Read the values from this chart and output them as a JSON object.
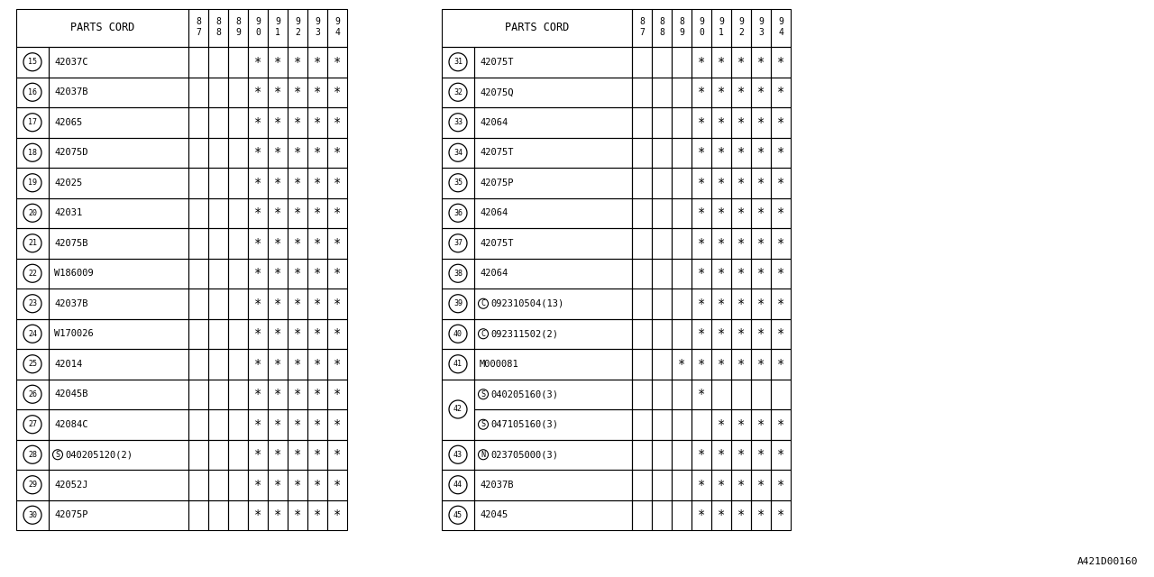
{
  "bg_color": "#ffffff",
  "col_headers_top": [
    "8",
    "8",
    "8",
    "9",
    "9",
    "9",
    "9",
    "9"
  ],
  "col_headers_bot": [
    "7",
    "8",
    "9",
    "0",
    "1",
    "2",
    "3",
    "4"
  ],
  "left_table": {
    "header": "PARTS CORD",
    "rows": [
      {
        "num": "15",
        "code": "42037C",
        "marks": [
          0,
          0,
          0,
          1,
          1,
          1,
          1,
          1
        ],
        "prefix": ""
      },
      {
        "num": "16",
        "code": "42037B",
        "marks": [
          0,
          0,
          0,
          1,
          1,
          1,
          1,
          1
        ],
        "prefix": ""
      },
      {
        "num": "17",
        "code": "42065",
        "marks": [
          0,
          0,
          0,
          1,
          1,
          1,
          1,
          1
        ],
        "prefix": ""
      },
      {
        "num": "18",
        "code": "42075D",
        "marks": [
          0,
          0,
          0,
          1,
          1,
          1,
          1,
          1
        ],
        "prefix": ""
      },
      {
        "num": "19",
        "code": "42025",
        "marks": [
          0,
          0,
          0,
          1,
          1,
          1,
          1,
          1
        ],
        "prefix": ""
      },
      {
        "num": "20",
        "code": "42031",
        "marks": [
          0,
          0,
          0,
          1,
          1,
          1,
          1,
          1
        ],
        "prefix": ""
      },
      {
        "num": "21",
        "code": "42075B",
        "marks": [
          0,
          0,
          0,
          1,
          1,
          1,
          1,
          1
        ],
        "prefix": ""
      },
      {
        "num": "22",
        "code": "W186009",
        "marks": [
          0,
          0,
          0,
          1,
          1,
          1,
          1,
          1
        ],
        "prefix": ""
      },
      {
        "num": "23",
        "code": "42037B",
        "marks": [
          0,
          0,
          0,
          1,
          1,
          1,
          1,
          1
        ],
        "prefix": ""
      },
      {
        "num": "24",
        "code": "W170026",
        "marks": [
          0,
          0,
          0,
          1,
          1,
          1,
          1,
          1
        ],
        "prefix": ""
      },
      {
        "num": "25",
        "code": "42014",
        "marks": [
          0,
          0,
          0,
          1,
          1,
          1,
          1,
          1
        ],
        "prefix": ""
      },
      {
        "num": "26",
        "code": "42045B",
        "marks": [
          0,
          0,
          0,
          1,
          1,
          1,
          1,
          1
        ],
        "prefix": ""
      },
      {
        "num": "27",
        "code": "42084C",
        "marks": [
          0,
          0,
          0,
          1,
          1,
          1,
          1,
          1
        ],
        "prefix": ""
      },
      {
        "num": "28",
        "code": "040205120(2)",
        "marks": [
          0,
          0,
          0,
          1,
          1,
          1,
          1,
          1
        ],
        "prefix": "S"
      },
      {
        "num": "29",
        "code": "42052J",
        "marks": [
          0,
          0,
          0,
          1,
          1,
          1,
          1,
          1
        ],
        "prefix": ""
      },
      {
        "num": "30",
        "code": "42075P",
        "marks": [
          0,
          0,
          0,
          1,
          1,
          1,
          1,
          1
        ],
        "prefix": ""
      }
    ]
  },
  "right_table": {
    "header": "PARTS CORD",
    "rows": [
      {
        "num": "31",
        "code": "42075T",
        "marks": [
          0,
          0,
          0,
          1,
          1,
          1,
          1,
          1
        ],
        "prefix": ""
      },
      {
        "num": "32",
        "code": "42075Q",
        "marks": [
          0,
          0,
          0,
          1,
          1,
          1,
          1,
          1
        ],
        "prefix": ""
      },
      {
        "num": "33",
        "code": "42064",
        "marks": [
          0,
          0,
          0,
          1,
          1,
          1,
          1,
          1
        ],
        "prefix": ""
      },
      {
        "num": "34",
        "code": "42075T",
        "marks": [
          0,
          0,
          0,
          1,
          1,
          1,
          1,
          1
        ],
        "prefix": ""
      },
      {
        "num": "35",
        "code": "42075P",
        "marks": [
          0,
          0,
          0,
          1,
          1,
          1,
          1,
          1
        ],
        "prefix": ""
      },
      {
        "num": "36",
        "code": "42064",
        "marks": [
          0,
          0,
          0,
          1,
          1,
          1,
          1,
          1
        ],
        "prefix": ""
      },
      {
        "num": "37",
        "code": "42075T",
        "marks": [
          0,
          0,
          0,
          1,
          1,
          1,
          1,
          1
        ],
        "prefix": ""
      },
      {
        "num": "38",
        "code": "42064",
        "marks": [
          0,
          0,
          0,
          1,
          1,
          1,
          1,
          1
        ],
        "prefix": ""
      },
      {
        "num": "39",
        "code": "092310504(13)",
        "marks": [
          0,
          0,
          0,
          1,
          1,
          1,
          1,
          1
        ],
        "prefix": "C"
      },
      {
        "num": "40",
        "code": "092311502(2)",
        "marks": [
          0,
          0,
          0,
          1,
          1,
          1,
          1,
          1
        ],
        "prefix": "C"
      },
      {
        "num": "41",
        "code": "M000081",
        "marks": [
          0,
          0,
          1,
          1,
          1,
          1,
          1,
          1
        ],
        "prefix": ""
      },
      {
        "num": "42",
        "code": "040205160(3)",
        "marks": [
          0,
          0,
          0,
          1,
          0,
          0,
          0,
          0
        ],
        "prefix": "S",
        "sub_code": "047105160(3)",
        "sub_marks": [
          0,
          0,
          0,
          0,
          1,
          1,
          1,
          1
        ],
        "sub_prefix": "S"
      },
      {
        "num": "43",
        "code": "023705000(3)",
        "marks": [
          0,
          0,
          0,
          1,
          1,
          1,
          1,
          1
        ],
        "prefix": "N"
      },
      {
        "num": "44",
        "code": "42037B",
        "marks": [
          0,
          0,
          0,
          1,
          1,
          1,
          1,
          1
        ],
        "prefix": ""
      },
      {
        "num": "45",
        "code": "42045",
        "marks": [
          0,
          0,
          0,
          1,
          1,
          1,
          1,
          1
        ],
        "prefix": ""
      }
    ]
  },
  "watermark": "A421D00160"
}
